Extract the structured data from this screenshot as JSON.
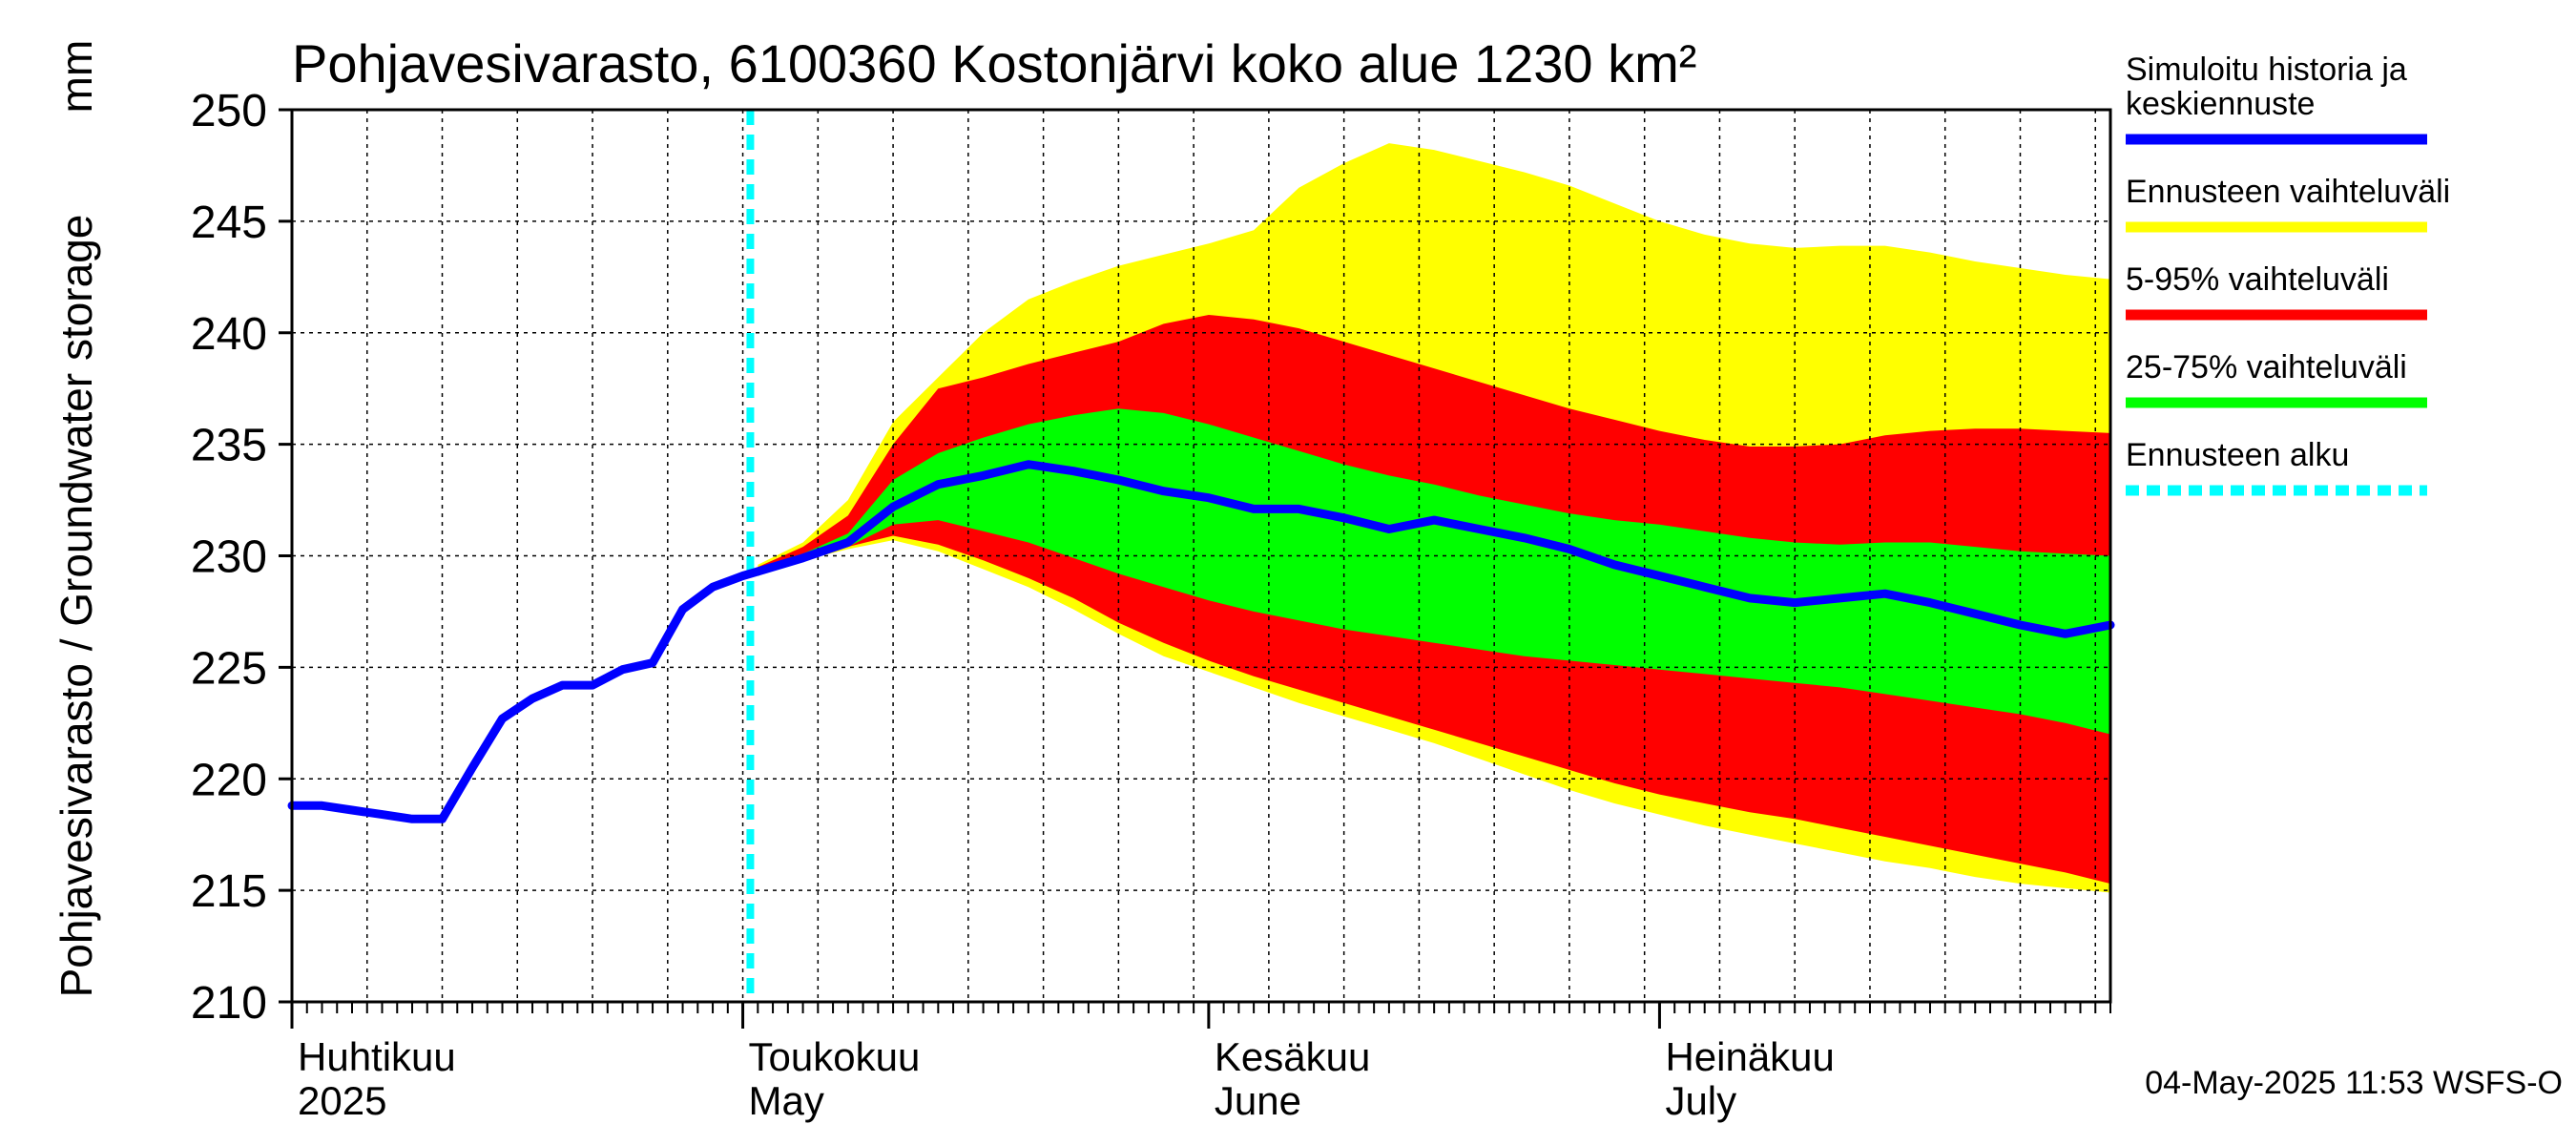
{
  "chart_data": {
    "type": "area",
    "title": "Pohjavesivarasto, 6100360 Kostonjärvi koko alue 1230 km²",
    "ylabel": "Pohjavesivarasto / Groundwater storage",
    "yunit": "mm",
    "ylim": [
      210,
      250
    ],
    "yticks": [
      210,
      215,
      220,
      225,
      230,
      235,
      240,
      245,
      250
    ],
    "xlim_days": [
      0,
      121
    ],
    "grid": true,
    "forecast_start_day": 30.5,
    "months": [
      {
        "day": 0,
        "fi": "Huhtikuu",
        "en": "2025"
      },
      {
        "day": 30,
        "fi": "Toukokuu",
        "en": "May"
      },
      {
        "day": 61,
        "fi": "Kesäkuu",
        "en": "June"
      },
      {
        "day": 91,
        "fi": "Heinäkuu",
        "en": "July"
      }
    ],
    "legend": [
      {
        "label": "Simuloitu historia ja keskiennuste",
        "color": "#0000ff",
        "style": "solid"
      },
      {
        "label": "Ennusteen vaihteluväli",
        "color": "#ffff00",
        "style": "solid"
      },
      {
        "label": "5-95% vaihteluväli",
        "color": "#ff0000",
        "style": "solid"
      },
      {
        "label": "25-75% vaihteluväli",
        "color": "#00ff00",
        "style": "solid"
      },
      {
        "label": "Ennusteen alku",
        "color": "#00ffff",
        "style": "dashed"
      }
    ],
    "history": {
      "x": [
        0,
        2,
        4,
        6,
        8,
        10,
        12,
        14,
        16,
        18,
        20,
        22,
        24,
        26,
        28,
        30,
        31
      ],
      "y": [
        218.8,
        218.8,
        218.6,
        218.4,
        218.2,
        218.2,
        220.5,
        222.7,
        223.6,
        224.2,
        224.2,
        224.9,
        225.2,
        227.6,
        228.6,
        229.1,
        229.3
      ]
    },
    "forecast_x": [
      31,
      34,
      37,
      40,
      43,
      46,
      49,
      52,
      55,
      58,
      61,
      64,
      67,
      70,
      73,
      76,
      79,
      82,
      85,
      88,
      91,
      94,
      97,
      100,
      103,
      106,
      109,
      112,
      115,
      118,
      121
    ],
    "series": [
      {
        "name": "median",
        "color": "#0000ff",
        "values": [
          229.3,
          229.9,
          230.6,
          232.2,
          233.2,
          233.6,
          234.1,
          233.8,
          233.4,
          232.9,
          232.6,
          232.1,
          232.1,
          231.7,
          231.2,
          231.6,
          231.2,
          230.8,
          230.3,
          229.6,
          229.1,
          228.6,
          228.1,
          227.9,
          228.1,
          228.3,
          227.9,
          227.4,
          226.9,
          226.5,
          226.9
        ]
      },
      {
        "name": "range_upper",
        "color": "#ffff00",
        "values": [
          229.6,
          230.6,
          232.5,
          236.0,
          238.0,
          240.0,
          241.5,
          242.3,
          243.0,
          243.5,
          244.0,
          244.6,
          246.5,
          247.6,
          248.5,
          248.2,
          247.7,
          247.2,
          246.6,
          245.8,
          245.0,
          244.4,
          244.0,
          243.8,
          243.9,
          243.9,
          243.6,
          243.2,
          242.9,
          242.6,
          242.4
        ]
      },
      {
        "name": "range_lower",
        "color": "#ffff00",
        "values": [
          229.3,
          229.8,
          230.3,
          230.7,
          230.2,
          229.4,
          228.6,
          227.6,
          226.5,
          225.5,
          224.8,
          224.1,
          223.4,
          222.8,
          222.2,
          221.6,
          220.9,
          220.2,
          219.5,
          218.9,
          218.4,
          217.9,
          217.5,
          217.1,
          216.7,
          216.3,
          216.0,
          215.6,
          215.3,
          215.1,
          214.9
        ]
      },
      {
        "name": "p95",
        "color": "#ff0000",
        "values": [
          229.5,
          230.4,
          231.8,
          235.0,
          237.5,
          238.0,
          238.6,
          239.1,
          239.6,
          240.4,
          240.8,
          240.6,
          240.2,
          239.6,
          239.0,
          238.4,
          237.8,
          237.2,
          236.6,
          236.1,
          235.6,
          235.2,
          234.9,
          234.9,
          235.0,
          235.4,
          235.6,
          235.7,
          235.7,
          235.6,
          235.5
        ]
      },
      {
        "name": "p5",
        "color": "#ff0000",
        "values": [
          229.3,
          229.9,
          230.4,
          230.9,
          230.5,
          229.8,
          229.0,
          228.1,
          227.0,
          226.1,
          225.3,
          224.6,
          224.0,
          223.4,
          222.8,
          222.2,
          221.6,
          221.0,
          220.4,
          219.8,
          219.3,
          218.9,
          218.5,
          218.2,
          217.8,
          217.4,
          217.0,
          216.6,
          216.2,
          215.8,
          215.3
        ]
      },
      {
        "name": "p75",
        "color": "#00ff00",
        "values": [
          229.4,
          230.1,
          231.0,
          233.4,
          234.6,
          235.3,
          235.9,
          236.3,
          236.6,
          236.4,
          235.9,
          235.3,
          234.7,
          234.1,
          233.6,
          233.2,
          232.7,
          232.3,
          231.9,
          231.6,
          231.4,
          231.1,
          230.8,
          230.6,
          230.5,
          230.6,
          230.6,
          230.4,
          230.2,
          230.1,
          230.0
        ]
      },
      {
        "name": "p25",
        "color": "#00ff00",
        "values": [
          229.3,
          229.9,
          230.4,
          231.4,
          231.6,
          231.1,
          230.6,
          229.9,
          229.2,
          228.6,
          228.0,
          227.5,
          227.1,
          226.7,
          226.4,
          226.1,
          225.8,
          225.5,
          225.3,
          225.1,
          224.9,
          224.7,
          224.5,
          224.3,
          224.1,
          223.8,
          223.5,
          223.2,
          222.9,
          222.5,
          222.0
        ]
      }
    ]
  },
  "footer": "04-May-2025 11:53 WSFS-O"
}
